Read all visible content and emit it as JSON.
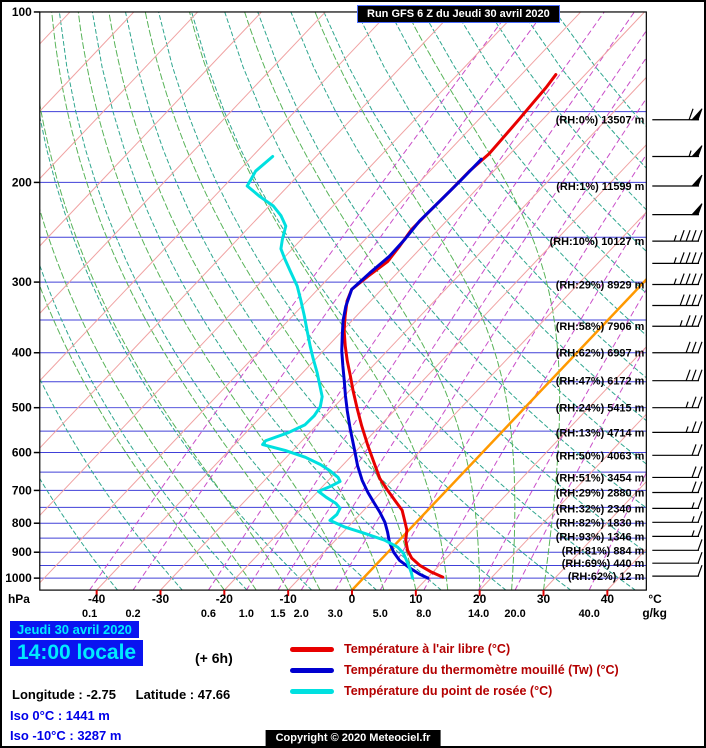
{
  "title": "Run GFS 6 Z du Jeudi 30 avril 2020",
  "footer": {
    "date": "Jeudi 30 avril 2020",
    "time": "14:00 locale",
    "offset": "(+ 6h)",
    "longitude": "Longitude : -2.75",
    "latitude": "Latitude : 47.66",
    "iso0": "Iso 0°C : 1441 m",
    "iso10": "Iso -10°C : 3287 m",
    "copyright": "Copyright © 2020 Meteociel.fr"
  },
  "legend": [
    {
      "label": "Température à l'air libre (°C)",
      "color": "#e80000"
    },
    {
      "label": "Température du thermomètre mouillé (Tw) (°C)",
      "color": "#0000d0"
    },
    {
      "label": "Température du point de rosée (°C)",
      "color": "#00e0e0"
    }
  ],
  "chart_data": {
    "type": "line",
    "subtype": "emagram-skewt-sounding",
    "pressure_axis": {
      "unit": "hPa",
      "scale": "log",
      "range": [
        100,
        1050
      ],
      "ticks": [
        100,
        200,
        300,
        400,
        500,
        600,
        700,
        800,
        900,
        1000
      ],
      "gridline_step_hPa": 50
    },
    "temp_axis": {
      "unit": "°C",
      "skewed": true,
      "ticks": [
        -40,
        -30,
        -20,
        -10,
        0,
        10,
        20,
        30,
        40
      ]
    },
    "mixing_axis": {
      "unit": "g/kg",
      "ticks": [
        0.1,
        0.2,
        0.6,
        1.0,
        1.5,
        2.0,
        3.0,
        5.0,
        8.0,
        14.0,
        20.0,
        40.0
      ]
    },
    "grid": {
      "isotherms_C": {
        "min": -140,
        "max": 40,
        "step": 10
      },
      "highlight_isotherm_C": 0,
      "dry_adiabats_theta_C": {
        "min": -40,
        "max": 150,
        "step": 10
      },
      "moist_adiabats_thetaw_C": {
        "min": -20,
        "max": 30,
        "step": 5
      },
      "colors": {
        "pressure_line": "#4040d8",
        "isotherm": "#f0a2a2",
        "isotherm_highlight": "#ff9900",
        "dry_adiabat": "#2fa68f",
        "moist_adiabat": "#58b358",
        "mixing_ratio": "#c94fc9",
        "barb": "#000000",
        "tick": "#dd0000"
      }
    },
    "series": [
      {
        "name": "temperature",
        "label": "Température à l'air libre (°C)",
        "color": "#e80000",
        "width": 3,
        "points_p_T": [
          [
            129,
            -44.6
          ],
          [
            136,
            -44.2
          ],
          [
            144,
            -44
          ],
          [
            155,
            -43.7
          ],
          [
            166,
            -43.5
          ],
          [
            178,
            -43.3
          ],
          [
            191,
            -43.8
          ],
          [
            207,
            -43.9
          ],
          [
            225,
            -44.1
          ],
          [
            242,
            -44.2
          ],
          [
            259,
            -43.6
          ],
          [
            276,
            -43.2
          ],
          [
            293,
            -44.1
          ],
          [
            309,
            -44.7
          ],
          [
            324,
            -43.7
          ],
          [
            344,
            -41.8
          ],
          [
            366,
            -39.7
          ],
          [
            389,
            -37.3
          ],
          [
            413,
            -34.8
          ],
          [
            439,
            -32.1
          ],
          [
            467,
            -29.4
          ],
          [
            500,
            -26.3
          ],
          [
            538,
            -22.9
          ],
          [
            583,
            -19
          ],
          [
            625,
            -15.5
          ],
          [
            667,
            -12.2
          ],
          [
            700,
            -9.2
          ],
          [
            729,
            -6.6
          ],
          [
            759,
            -4
          ],
          [
            791,
            -2.1
          ],
          [
            823,
            -0.3
          ],
          [
            857,
            1
          ],
          [
            893,
            2.8
          ],
          [
            922,
            4.6
          ],
          [
            949,
            6.9
          ],
          [
            976,
            9.8
          ],
          [
            996,
            12.3
          ]
        ]
      },
      {
        "name": "wet_bulb",
        "label": "Température du thermomètre mouillé (Tw) (°C)",
        "color": "#0000d0",
        "width": 3,
        "points_p_T": [
          [
            182,
            -43.7
          ],
          [
            199,
            -43.8
          ],
          [
            216,
            -44
          ],
          [
            234,
            -44.2
          ],
          [
            252,
            -43.8
          ],
          [
            270,
            -43.7
          ],
          [
            289,
            -44.3
          ],
          [
            309,
            -44.7
          ],
          [
            331,
            -43.1
          ],
          [
            351,
            -41.4
          ],
          [
            373,
            -39.3
          ],
          [
            397,
            -37.1
          ],
          [
            422,
            -34.7
          ],
          [
            448,
            -32.3
          ],
          [
            476,
            -29.9
          ],
          [
            506,
            -27.4
          ],
          [
            544,
            -24.3
          ],
          [
            590,
            -20.7
          ],
          [
            633,
            -17.6
          ],
          [
            672,
            -14.7
          ],
          [
            706,
            -12
          ],
          [
            735,
            -9.6
          ],
          [
            765,
            -7.2
          ],
          [
            797,
            -4.9
          ],
          [
            830,
            -3
          ],
          [
            865,
            -1.2
          ],
          [
            900,
            0.9
          ],
          [
            930,
            3
          ],
          [
            960,
            5.8
          ],
          [
            984,
            8.2
          ],
          [
            1000,
            10.1
          ]
        ]
      },
      {
        "name": "dew_point",
        "label": "Température du point de rosée (°C)",
        "color": "#00e0e0",
        "width": 3,
        "points_p_T": [
          [
            180,
            -76.8
          ],
          [
            191,
            -77.3
          ],
          [
            203,
            -76.4
          ],
          [
            212,
            -72.8
          ],
          [
            220,
            -69.4
          ],
          [
            229,
            -66.7
          ],
          [
            239,
            -64.4
          ],
          [
            252,
            -63
          ],
          [
            262,
            -61.8
          ],
          [
            273,
            -59.7
          ],
          [
            287,
            -57
          ],
          [
            305,
            -53.7
          ],
          [
            324,
            -50.9
          ],
          [
            344,
            -48.2
          ],
          [
            366,
            -45.5
          ],
          [
            389,
            -42.8
          ],
          [
            410,
            -40.4
          ],
          [
            434,
            -37.7
          ],
          [
            459,
            -35.2
          ],
          [
            478,
            -33.4
          ],
          [
            498,
            -32.2
          ],
          [
            517,
            -31.8
          ],
          [
            536,
            -31.9
          ],
          [
            553,
            -33.3
          ],
          [
            572,
            -35.7
          ],
          [
            581,
            -35.6
          ],
          [
            595,
            -31.2
          ],
          [
            612,
            -27
          ],
          [
            630,
            -23.6
          ],
          [
            646,
            -21.2
          ],
          [
            664,
            -18.9
          ],
          [
            675,
            -18
          ],
          [
            689,
            -18.8
          ],
          [
            703,
            -19.9
          ],
          [
            720,
            -17.8
          ],
          [
            738,
            -15.4
          ],
          [
            753,
            -14
          ],
          [
            772,
            -13.6
          ],
          [
            791,
            -13.8
          ],
          [
            813,
            -10.4
          ],
          [
            834,
            -6.4
          ],
          [
            857,
            -2.3
          ],
          [
            882,
            0.8
          ],
          [
            904,
            2.6
          ],
          [
            930,
            4.1
          ],
          [
            957,
            5.6
          ],
          [
            980,
            6.8
          ],
          [
            1000,
            7.7
          ]
        ]
      }
    ],
    "rh_height_labels": [
      {
        "p": 155,
        "label": "(RH:0%) 13507 m"
      },
      {
        "p": 203,
        "label": "(RH:1%) 11599 m"
      },
      {
        "p": 254,
        "label": "(RH:10%) 10127 m"
      },
      {
        "p": 303,
        "label": "(RH:29%) 8929 m"
      },
      {
        "p": 359,
        "label": "(RH:58%) 7906 m"
      },
      {
        "p": 400,
        "label": "(RH:62%) 6997 m"
      },
      {
        "p": 448,
        "label": "(RH:47%) 6172 m"
      },
      {
        "p": 500,
        "label": "(RH:24%) 5415 m"
      },
      {
        "p": 553,
        "label": "(RH:13%) 4714 m"
      },
      {
        "p": 607,
        "label": "(RH:50%) 4063 m"
      },
      {
        "p": 664,
        "label": "(RH:51%) 3454 m"
      },
      {
        "p": 706,
        "label": "(RH:29%) 2880 m"
      },
      {
        "p": 753,
        "label": "(RH:32%) 2340 m"
      },
      {
        "p": 797,
        "label": "(RH:82%) 1830 m"
      },
      {
        "p": 844,
        "label": "(RH:93%) 1346 m"
      },
      {
        "p": 893,
        "label": "(RH:81%) 884 m"
      },
      {
        "p": 941,
        "label": "(RH:69%) 440 m"
      },
      {
        "p": 992,
        "label": "(RH:62%) 12 m"
      }
    ],
    "wind_barbs": [
      {
        "p": 155,
        "kt": 60
      },
      {
        "p": 180,
        "kt": 55
      },
      {
        "p": 203,
        "kt": 50
      },
      {
        "p": 228,
        "kt": 50
      },
      {
        "p": 254,
        "kt": 45
      },
      {
        "p": 278,
        "kt": 45
      },
      {
        "p": 303,
        "kt": 45
      },
      {
        "p": 330,
        "kt": 40
      },
      {
        "p": 359,
        "kt": 35
      },
      {
        "p": 400,
        "kt": 30
      },
      {
        "p": 448,
        "kt": 30
      },
      {
        "p": 500,
        "kt": 25
      },
      {
        "p": 553,
        "kt": 25
      },
      {
        "p": 607,
        "kt": 20
      },
      {
        "p": 664,
        "kt": 20
      },
      {
        "p": 706,
        "kt": 20
      },
      {
        "p": 753,
        "kt": 15
      },
      {
        "p": 797,
        "kt": 15
      },
      {
        "p": 844,
        "kt": 15
      },
      {
        "p": 893,
        "kt": 10
      },
      {
        "p": 941,
        "kt": 10
      },
      {
        "p": 992,
        "kt": 10
      }
    ]
  }
}
